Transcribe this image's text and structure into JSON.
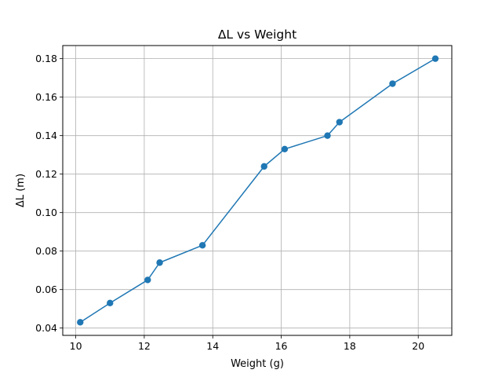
{
  "chart_data": {
    "type": "line",
    "title": "ΔL vs Weight",
    "xlabel": "Weight (g)",
    "ylabel": "ΔL (m)",
    "xlim": [
      9.62,
      20.98
    ],
    "ylim": [
      0.0362,
      0.1868
    ],
    "xticks": [
      10,
      12,
      14,
      16,
      18,
      20
    ],
    "yticks": [
      0.04,
      0.06,
      0.08,
      0.1,
      0.12,
      0.14,
      0.16,
      0.18
    ],
    "xtick_labels": [
      "10",
      "12",
      "14",
      "16",
      "18",
      "20"
    ],
    "ytick_labels": [
      "0.04",
      "0.06",
      "0.08",
      "0.10",
      "0.12",
      "0.14",
      "0.16",
      "0.18"
    ],
    "grid": true,
    "series": [
      {
        "name": "ΔL",
        "color": "#1f77b4",
        "marker": "circle",
        "x": [
          10.13,
          11.0,
          12.1,
          12.45,
          13.7,
          15.5,
          16.1,
          17.35,
          17.7,
          19.25,
          20.5
        ],
        "y": [
          0.043,
          0.053,
          0.065,
          0.074,
          0.083,
          0.124,
          0.133,
          0.14,
          0.147,
          0.167,
          0.18
        ]
      }
    ]
  }
}
